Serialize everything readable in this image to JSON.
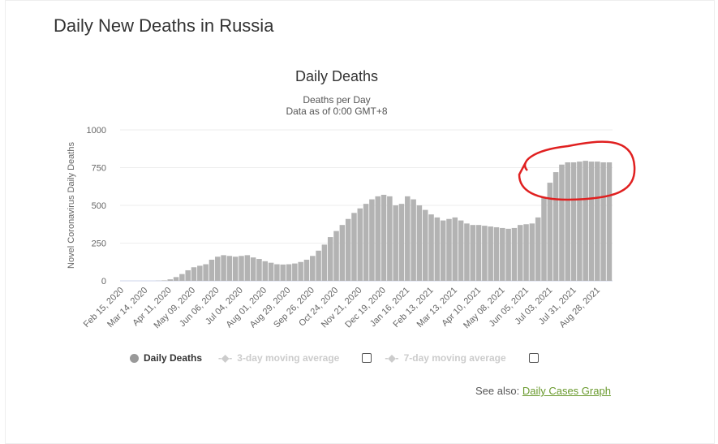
{
  "page_title": "Daily New Deaths in Russia",
  "chart_data": {
    "type": "bar",
    "title": "Daily Deaths",
    "subtitle": "Deaths per Day",
    "subtitle2": "Data as of 0:00 GMT+8",
    "ylabel": "Novel Coronavirus Daily Deaths",
    "xlabel": "",
    "ylim": [
      0,
      1000
    ],
    "yticks": [
      "0",
      "250",
      "500",
      "750",
      "1000"
    ],
    "ytick_values": [
      0,
      250,
      500,
      750,
      1000
    ],
    "xtick_labels": [
      "Feb 15, 2020",
      "Mar 14, 2020",
      "Apr 11, 2020",
      "May 09, 2020",
      "Jun 06, 2020",
      "Jul 04, 2020",
      "Aug 01, 2020",
      "Aug 29, 2020",
      "Sep 26, 2020",
      "Oct 24, 2020",
      "Nov 21, 2020",
      "Dec 19, 2020",
      "Jan 16, 2021",
      "Feb 13, 2021",
      "Mar 13, 2021",
      "Apr 10, 2021",
      "May 08, 2021",
      "Jun 05, 2021",
      "Jul 03, 2021",
      "Jul 31, 2021",
      "Aug 28, 2021"
    ],
    "bar_interval": "weekly (approx.) starting Feb 15, 2020",
    "values": [
      0,
      0,
      0,
      0,
      0,
      0,
      1,
      3,
      10,
      25,
      45,
      70,
      90,
      100,
      110,
      140,
      160,
      170,
      165,
      160,
      165,
      170,
      155,
      145,
      130,
      120,
      110,
      108,
      110,
      115,
      125,
      140,
      165,
      200,
      240,
      290,
      330,
      370,
      410,
      450,
      480,
      510,
      540,
      560,
      570,
      560,
      500,
      510,
      560,
      540,
      500,
      470,
      440,
      420,
      400,
      410,
      420,
      400,
      380,
      370,
      370,
      365,
      360,
      355,
      350,
      345,
      350,
      370,
      375,
      380,
      420,
      550,
      650,
      720,
      770,
      785,
      785,
      790,
      795,
      790,
      790,
      785,
      785
    ],
    "series_name": "Daily Deaths",
    "legend": [
      "Daily Deaths",
      "3-day moving average",
      "7-day moving average"
    ],
    "legend_placement": "bottom",
    "grid": true
  },
  "see_also": {
    "label": "See also:",
    "link": "Daily Cases Graph"
  },
  "colors": {
    "bar": "#b3b3b3",
    "annotation": "#e02020",
    "link": "#6a9a2e"
  }
}
